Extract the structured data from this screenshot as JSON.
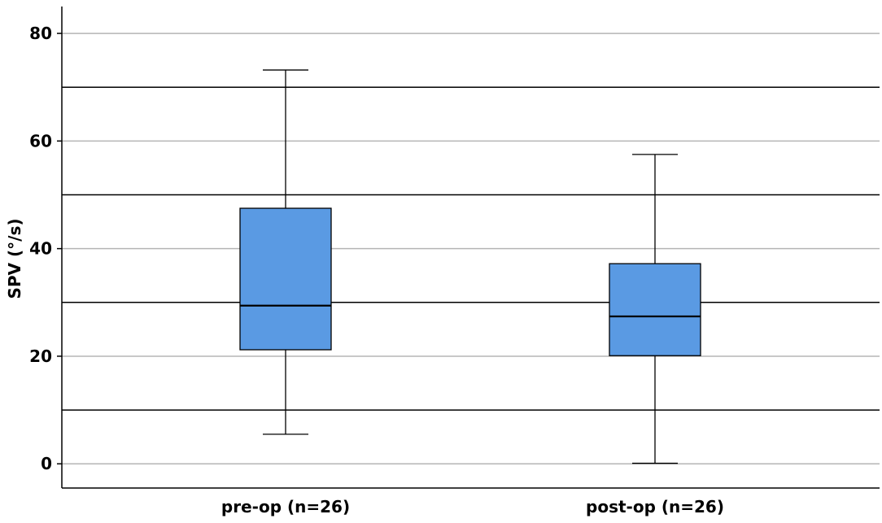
{
  "chart_data": {
    "type": "boxplot",
    "title": "",
    "xlabel": "",
    "ylabel": "SPV (°/s)",
    "ylim": [
      -4.5,
      85
    ],
    "y_ticks": [
      0,
      20,
      40,
      60,
      80
    ],
    "grid": true,
    "categories": [
      "pre-op (n=26)",
      "post-op (n=26)"
    ],
    "series": [
      {
        "category": "pre-op (n=26)",
        "min": 5.5,
        "q1": 21.2,
        "median": 29.4,
        "q3": 47.5,
        "max": 73.2
      },
      {
        "category": "post-op (n=26)",
        "min": 0.1,
        "q1": 20.1,
        "median": 27.4,
        "q3": 37.2,
        "max": 57.5
      }
    ],
    "reference_lines": [
      10,
      30,
      50,
      70
    ],
    "colors": {
      "box_fill": "#5a9ae3",
      "box_stroke": "#000000",
      "grid_minor": "#b5b5b5",
      "grid_major": "#000000"
    }
  }
}
